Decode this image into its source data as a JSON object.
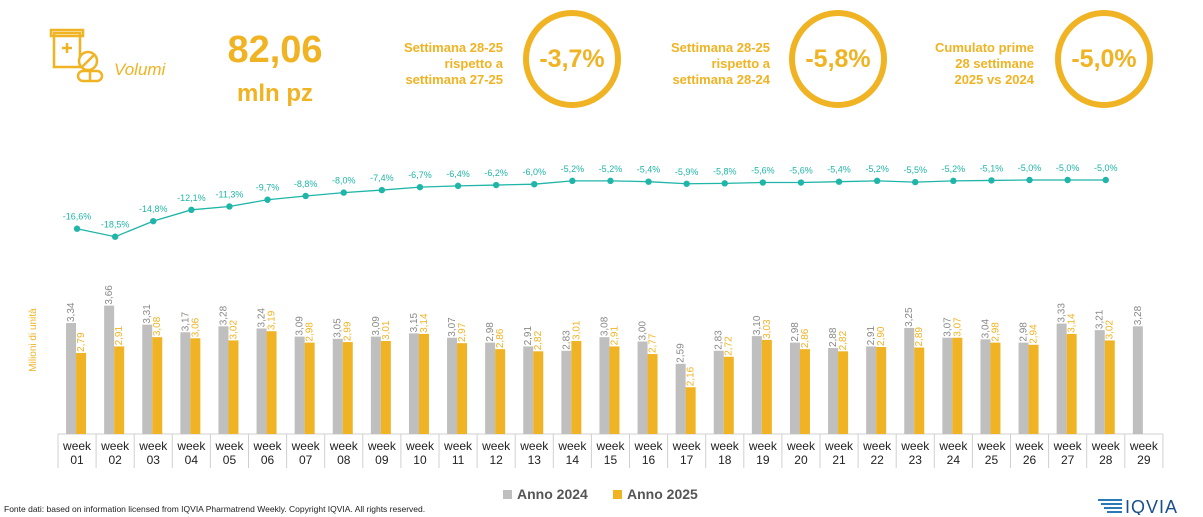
{
  "kpi": {
    "label": "Volumi",
    "value": "82,06",
    "unit": "mln pz",
    "icon": "medicine-package-icon"
  },
  "comparisons": [
    {
      "lines": [
        "Settimana 28-25",
        "rispetto a",
        "settimana 27-25"
      ],
      "value": "-3,7%"
    },
    {
      "lines": [
        "Settimana 28-25",
        "rispetto a",
        "settimana 28-24"
      ],
      "value": "-5,8%"
    },
    {
      "lines": [
        "Cumulato prime",
        "28 settimane",
        "2025 vs 2024"
      ],
      "value": "-5,0%"
    }
  ],
  "colors": {
    "accent": "#f0b323",
    "bar_2024": "#bfbfbf",
    "bar_2025": "#f0b323",
    "line": "#1fb5a8",
    "label_2024": "#888888"
  },
  "chart_data": {
    "type": "bar",
    "ylabel": "Milioni di unità",
    "categories": [
      "week 01",
      "week 02",
      "week 03",
      "week 04",
      "week 05",
      "week 06",
      "week 07",
      "week 08",
      "week 09",
      "week 10",
      "week 11",
      "week 12",
      "week 13",
      "week 14",
      "week 15",
      "week 16",
      "week 17",
      "week 18",
      "week 19",
      "week 20",
      "week 21",
      "week 22",
      "week 23",
      "week 24",
      "week 25",
      "week 26",
      "week 27",
      "week 28",
      "week 29"
    ],
    "series": [
      {
        "name": "Anno 2024",
        "values": [
          3.34,
          3.66,
          3.31,
          3.17,
          3.28,
          3.24,
          3.09,
          3.05,
          3.09,
          3.15,
          3.07,
          2.98,
          2.91,
          2.83,
          3.08,
          3.0,
          2.59,
          2.83,
          3.1,
          2.98,
          2.88,
          2.91,
          3.25,
          3.07,
          3.04,
          2.98,
          3.33,
          3.21,
          3.28
        ],
        "labels": [
          "3,34",
          "3,66",
          "3,31",
          "3,17",
          "3,28",
          "3,24",
          "3,09",
          "3,05",
          "3,09",
          "3,15",
          "3,07",
          "2,98",
          "2,91",
          "2,83",
          "3,08",
          "3,00",
          "2,59",
          "2,83",
          "3,10",
          "2,98",
          "2,88",
          "2,91",
          "3,25",
          "3,07",
          "3,04",
          "2,98",
          "3,33",
          "3,21",
          "3,28"
        ]
      },
      {
        "name": "Anno 2025",
        "values": [
          2.79,
          2.91,
          3.08,
          3.06,
          3.02,
          3.19,
          2.98,
          2.99,
          3.01,
          3.14,
          2.97,
          2.86,
          2.82,
          3.01,
          2.91,
          2.77,
          2.16,
          2.72,
          3.03,
          2.86,
          2.82,
          2.9,
          2.89,
          3.07,
          2.98,
          2.94,
          3.14,
          3.02,
          null
        ],
        "labels": [
          "2,79",
          "2,91",
          "3,08",
          "3,06",
          "3,02",
          "3,19",
          "2,98",
          "2,99",
          "3,01",
          "3,14",
          "2,97",
          "2,86",
          "2,82",
          "3,01",
          "2,91",
          "2,77",
          "2,16",
          "2,72",
          "3,03",
          "2,86",
          "2,82",
          "2,90",
          "2,89",
          "3,07",
          "2,98",
          "2,94",
          "3,14",
          "3,02",
          ""
        ]
      }
    ],
    "cumulative_change": {
      "values": [
        -16.6,
        -18.5,
        -14.8,
        -12.1,
        -11.3,
        -9.7,
        -8.8,
        -8.0,
        -7.4,
        -6.7,
        -6.4,
        -6.2,
        -6.0,
        -5.2,
        -5.2,
        -5.4,
        -5.9,
        -5.8,
        -5.6,
        -5.6,
        -5.4,
        -5.2,
        -5.5,
        -5.2,
        -5.1,
        -5.0,
        -5.0,
        -5.0
      ],
      "labels": [
        "-16,6%",
        "-18,5%",
        "-14,8%",
        "-12,1%",
        "-11,3%",
        "-9,7%",
        "-8,8%",
        "-8,0%",
        "-7,4%",
        "-6,7%",
        "-6,4%",
        "-6,2%",
        "-6,0%",
        "-5,2%",
        "-5,2%",
        "-5,4%",
        "-5,9%",
        "-5,8%",
        "-5,6%",
        "-5,6%",
        "-5,4%",
        "-5,2%",
        "-5,5%",
        "-5,2%",
        "-5,1%",
        "-5,0%",
        "-5,0%",
        "-5,0%"
      ]
    },
    "legend": "bottom-center"
  },
  "footer": {
    "source": "Fonte dati: based on information licensed from IQVIA Pharmatrend Weekly. Copyright IQVIA. All rights reserved.",
    "logo_text": "IQVIA"
  }
}
